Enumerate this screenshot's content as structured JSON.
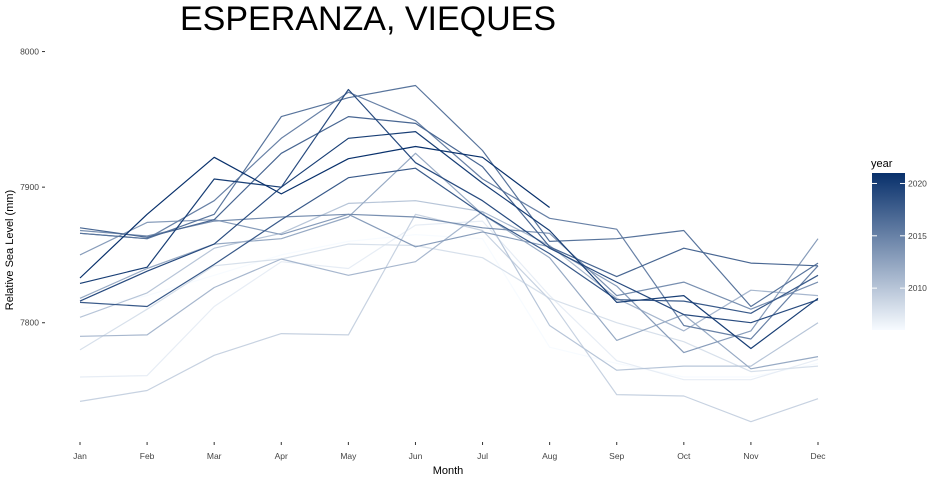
{
  "chart_data": {
    "type": "line",
    "title": "ESPERANZA, VIEQUES",
    "xlabel": "Month",
    "ylabel": "Relative Sea Level (mm)",
    "categories": [
      "Jan",
      "Feb",
      "Mar",
      "Apr",
      "May",
      "Jun",
      "Jul",
      "Aug",
      "Sep",
      "Oct",
      "Nov",
      "Dec"
    ],
    "ylim": [
      7715,
      8010
    ],
    "yticks": [
      7800,
      7900,
      8000
    ],
    "grid": false,
    "color_scale": {
      "title": "year",
      "min": 2006,
      "max": 2021,
      "low_color": "#f7fbff",
      "high_color": "#08306b",
      "ticks": [
        2010,
        2015,
        2020
      ]
    },
    "series": [
      {
        "year": 2006,
        "values": [
          7810,
          7820,
          7835,
          7850,
          7860,
          7865,
          7862,
          7782,
          7770,
          7760,
          7760,
          7770
        ]
      },
      {
        "year": 2007,
        "values": [
          7760,
          7761,
          7812,
          7845,
          7840,
          7872,
          7875,
          7820,
          7772,
          7758,
          7758,
          7773
        ]
      },
      {
        "year": 2008,
        "values": [
          7780,
          7810,
          7842,
          7847,
          7858,
          7857,
          7848,
          7818,
          7800,
          7786,
          7764,
          7768
        ]
      },
      {
        "year": 2009,
        "values": [
          7742,
          7750,
          7776,
          7792,
          7791,
          7880,
          7868,
          7817,
          7747,
          7746,
          7727,
          7744
        ]
      },
      {
        "year": 2010,
        "values": [
          7804,
          7822,
          7855,
          7866,
          7888,
          7890,
          7882,
          7798,
          7765,
          7768,
          7768,
          7800
        ]
      },
      {
        "year": 2011,
        "values": [
          7790,
          7791,
          7826,
          7847,
          7835,
          7845,
          7882,
          7857,
          7818,
          7794,
          7824,
          7820
        ]
      },
      {
        "year": 2012,
        "values": [
          7818,
          7840,
          7858,
          7862,
          7878,
          7925,
          7880,
          7848,
          7787,
          7806,
          7766,
          7775
        ]
      },
      {
        "year": 2013,
        "values": [
          7850,
          7874,
          7876,
          7865,
          7880,
          7856,
          7867,
          7856,
          7827,
          7778,
          7794,
          7862
        ]
      },
      {
        "year": 2014,
        "values": [
          7868,
          7864,
          7875,
          7878,
          7880,
          7878,
          7870,
          7866,
          7820,
          7830,
          7810,
          7830
        ]
      },
      {
        "year": 2015,
        "values": [
          7866,
          7862,
          7890,
          7936,
          7970,
          7949,
          7906,
          7877,
          7869,
          7798,
          7788,
          7842
        ]
      },
      {
        "year": 2016,
        "values": [
          7866,
          7862,
          7880,
          7952,
          7966,
          7975,
          7927,
          7860,
          7862,
          7868,
          7812,
          7844
        ]
      },
      {
        "year": 2017,
        "values": [
          7870,
          7863,
          7876,
          7925,
          7952,
          7947,
          7915,
          7856,
          7834,
          7855,
          7844,
          7842
        ]
      },
      {
        "year": 2018,
        "values": [
          7815,
          7812,
          7843,
          7876,
          7907,
          7914,
          7880,
          7851,
          7817,
          7816,
          7807,
          7835
        ]
      },
      {
        "year": 2019,
        "values": [
          7816,
          7838,
          7858,
          7900,
          7972,
          7918,
          7890,
          7855,
          7830,
          7806,
          7800,
          7817
        ]
      },
      {
        "year": 2020,
        "values": [
          7829,
          7841,
          7906,
          7900,
          7936,
          7941,
          7903,
          7868,
          7815,
          7820,
          7781,
          7818
        ]
      },
      {
        "year": 2021,
        "values": [
          7833,
          7880,
          7922,
          7895,
          7921,
          7930,
          7922,
          7885,
          null,
          null,
          null,
          null
        ]
      }
    ]
  }
}
